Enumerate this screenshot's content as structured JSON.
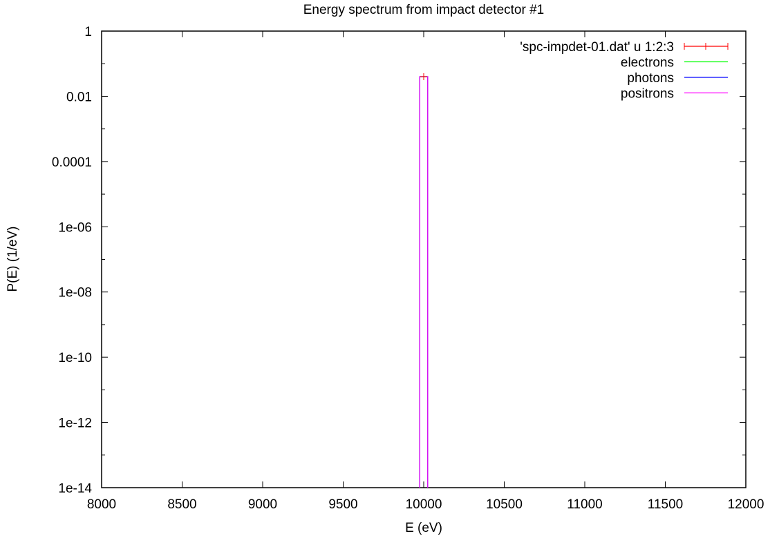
{
  "chart_data": {
    "type": "line",
    "title": "Energy spectrum from impact detector #1",
    "xlabel": "E (eV)",
    "ylabel": "P(E) (1/eV)",
    "xlim": [
      8000,
      12000
    ],
    "ylim": [
      1e-14,
      1
    ],
    "y_scale": "log",
    "grid": false,
    "legend_position": "top-right",
    "x_ticks": [
      8000,
      8500,
      9000,
      9500,
      10000,
      10500,
      11000,
      11500,
      12000
    ],
    "x_tick_labels": [
      "8000",
      "8500",
      "9000",
      "9500",
      "10000",
      "10500",
      "11000",
      "11500",
      "12000"
    ],
    "y_ticks": [
      1e-14,
      1e-12,
      1e-10,
      1e-08,
      1e-06,
      0.0001,
      0.01,
      1
    ],
    "y_tick_labels": [
      "1e-14",
      "1e-12",
      "1e-10",
      "1e-08",
      "1e-06",
      "0.0001",
      "0.01",
      "1"
    ],
    "series": [
      {
        "name": "'spc-impdet-01.dat' u 1:2:3",
        "style": "errorbars",
        "color": "#ff0000",
        "points": [
          {
            "x": 10000,
            "y": 0.04
          }
        ]
      },
      {
        "name": "electrons",
        "style": "steps",
        "color": "#00ff00",
        "x": [
          9975,
          9975,
          10025,
          10025
        ],
        "y": [
          1e-14,
          0.04,
          0.04,
          1e-14
        ]
      },
      {
        "name": "photons",
        "style": "steps",
        "color": "#0000ff",
        "x": [
          9975,
          9975,
          10025,
          10025
        ],
        "y": [
          1e-14,
          0.04,
          0.04,
          1e-14
        ]
      },
      {
        "name": "positrons",
        "style": "steps",
        "color": "#ff00ff",
        "x": [
          9975,
          9975,
          10025,
          10025
        ],
        "y": [
          1e-14,
          0.04,
          0.04,
          1e-14
        ]
      }
    ]
  }
}
